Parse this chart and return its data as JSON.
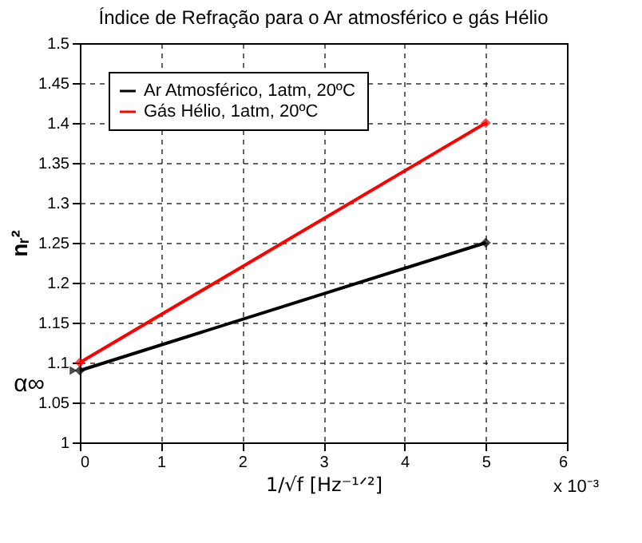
{
  "chart_data": {
    "type": "line",
    "title": "Índice de Refração para o Ar atmosférico e gás Hélio",
    "xlabel": "1/√f  [Hz⁻¹ᐟ²]",
    "ylabel": "nᵣ²",
    "x": [
      0,
      5
    ],
    "series": [
      {
        "name": "Ar Atmosférico, 1atm, 20ºC",
        "color": "#000000",
        "values": [
          1.09,
          1.25
        ]
      },
      {
        "name": "Gás Hélio, 1atm, 20ºC",
        "color": "#ff0000",
        "values": [
          1.1,
          1.4
        ]
      }
    ],
    "xlim": [
      0,
      6
    ],
    "xticks": [
      0,
      1,
      2,
      3,
      4,
      5,
      6
    ],
    "ylim": [
      1,
      1.5
    ],
    "yticks": [
      1,
      1.05,
      1.1,
      1.15,
      1.2,
      1.25,
      1.3,
      1.35,
      1.4,
      1.45,
      1.5
    ],
    "annotations": [
      {
        "text": "α∞",
        "x": 0,
        "y": 1.09
      },
      "x 10⁻³"
    ],
    "grid": true,
    "legend": "top left",
    "marker": "diamond",
    "line_style": "solid"
  }
}
